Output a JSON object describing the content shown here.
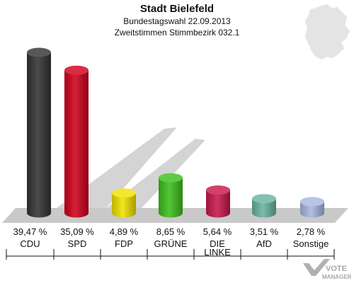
{
  "chart_data": {
    "type": "bar",
    "title": "Stadt Bielefeld",
    "subtitle": [
      "Bundestagswahl 22.09.2013",
      "Zweitstimmen Stimmbezirk 032.1"
    ],
    "categories": [
      "CDU",
      "SPD",
      "FDP",
      "GRÜNE",
      "DIE LINKE",
      "AfD",
      "Sonstige"
    ],
    "values": [
      39.47,
      35.09,
      4.89,
      8.65,
      5.64,
      3.51,
      2.78
    ],
    "value_labels": [
      "39,47 %",
      "35,09 %",
      "4,89 %",
      "8,65 %",
      "5,64 %",
      "3,51 %",
      "2,78 %"
    ],
    "colors": [
      "#333333",
      "#d0001c",
      "#f0e000",
      "#3cbf1c",
      "#c8174a",
      "#6ab39f",
      "#a9b6e0"
    ],
    "ylim": [
      0,
      40
    ],
    "grid": false,
    "legend": "none"
  },
  "brand": {
    "line1": "VOTE",
    "line2": "MANAGER"
  }
}
